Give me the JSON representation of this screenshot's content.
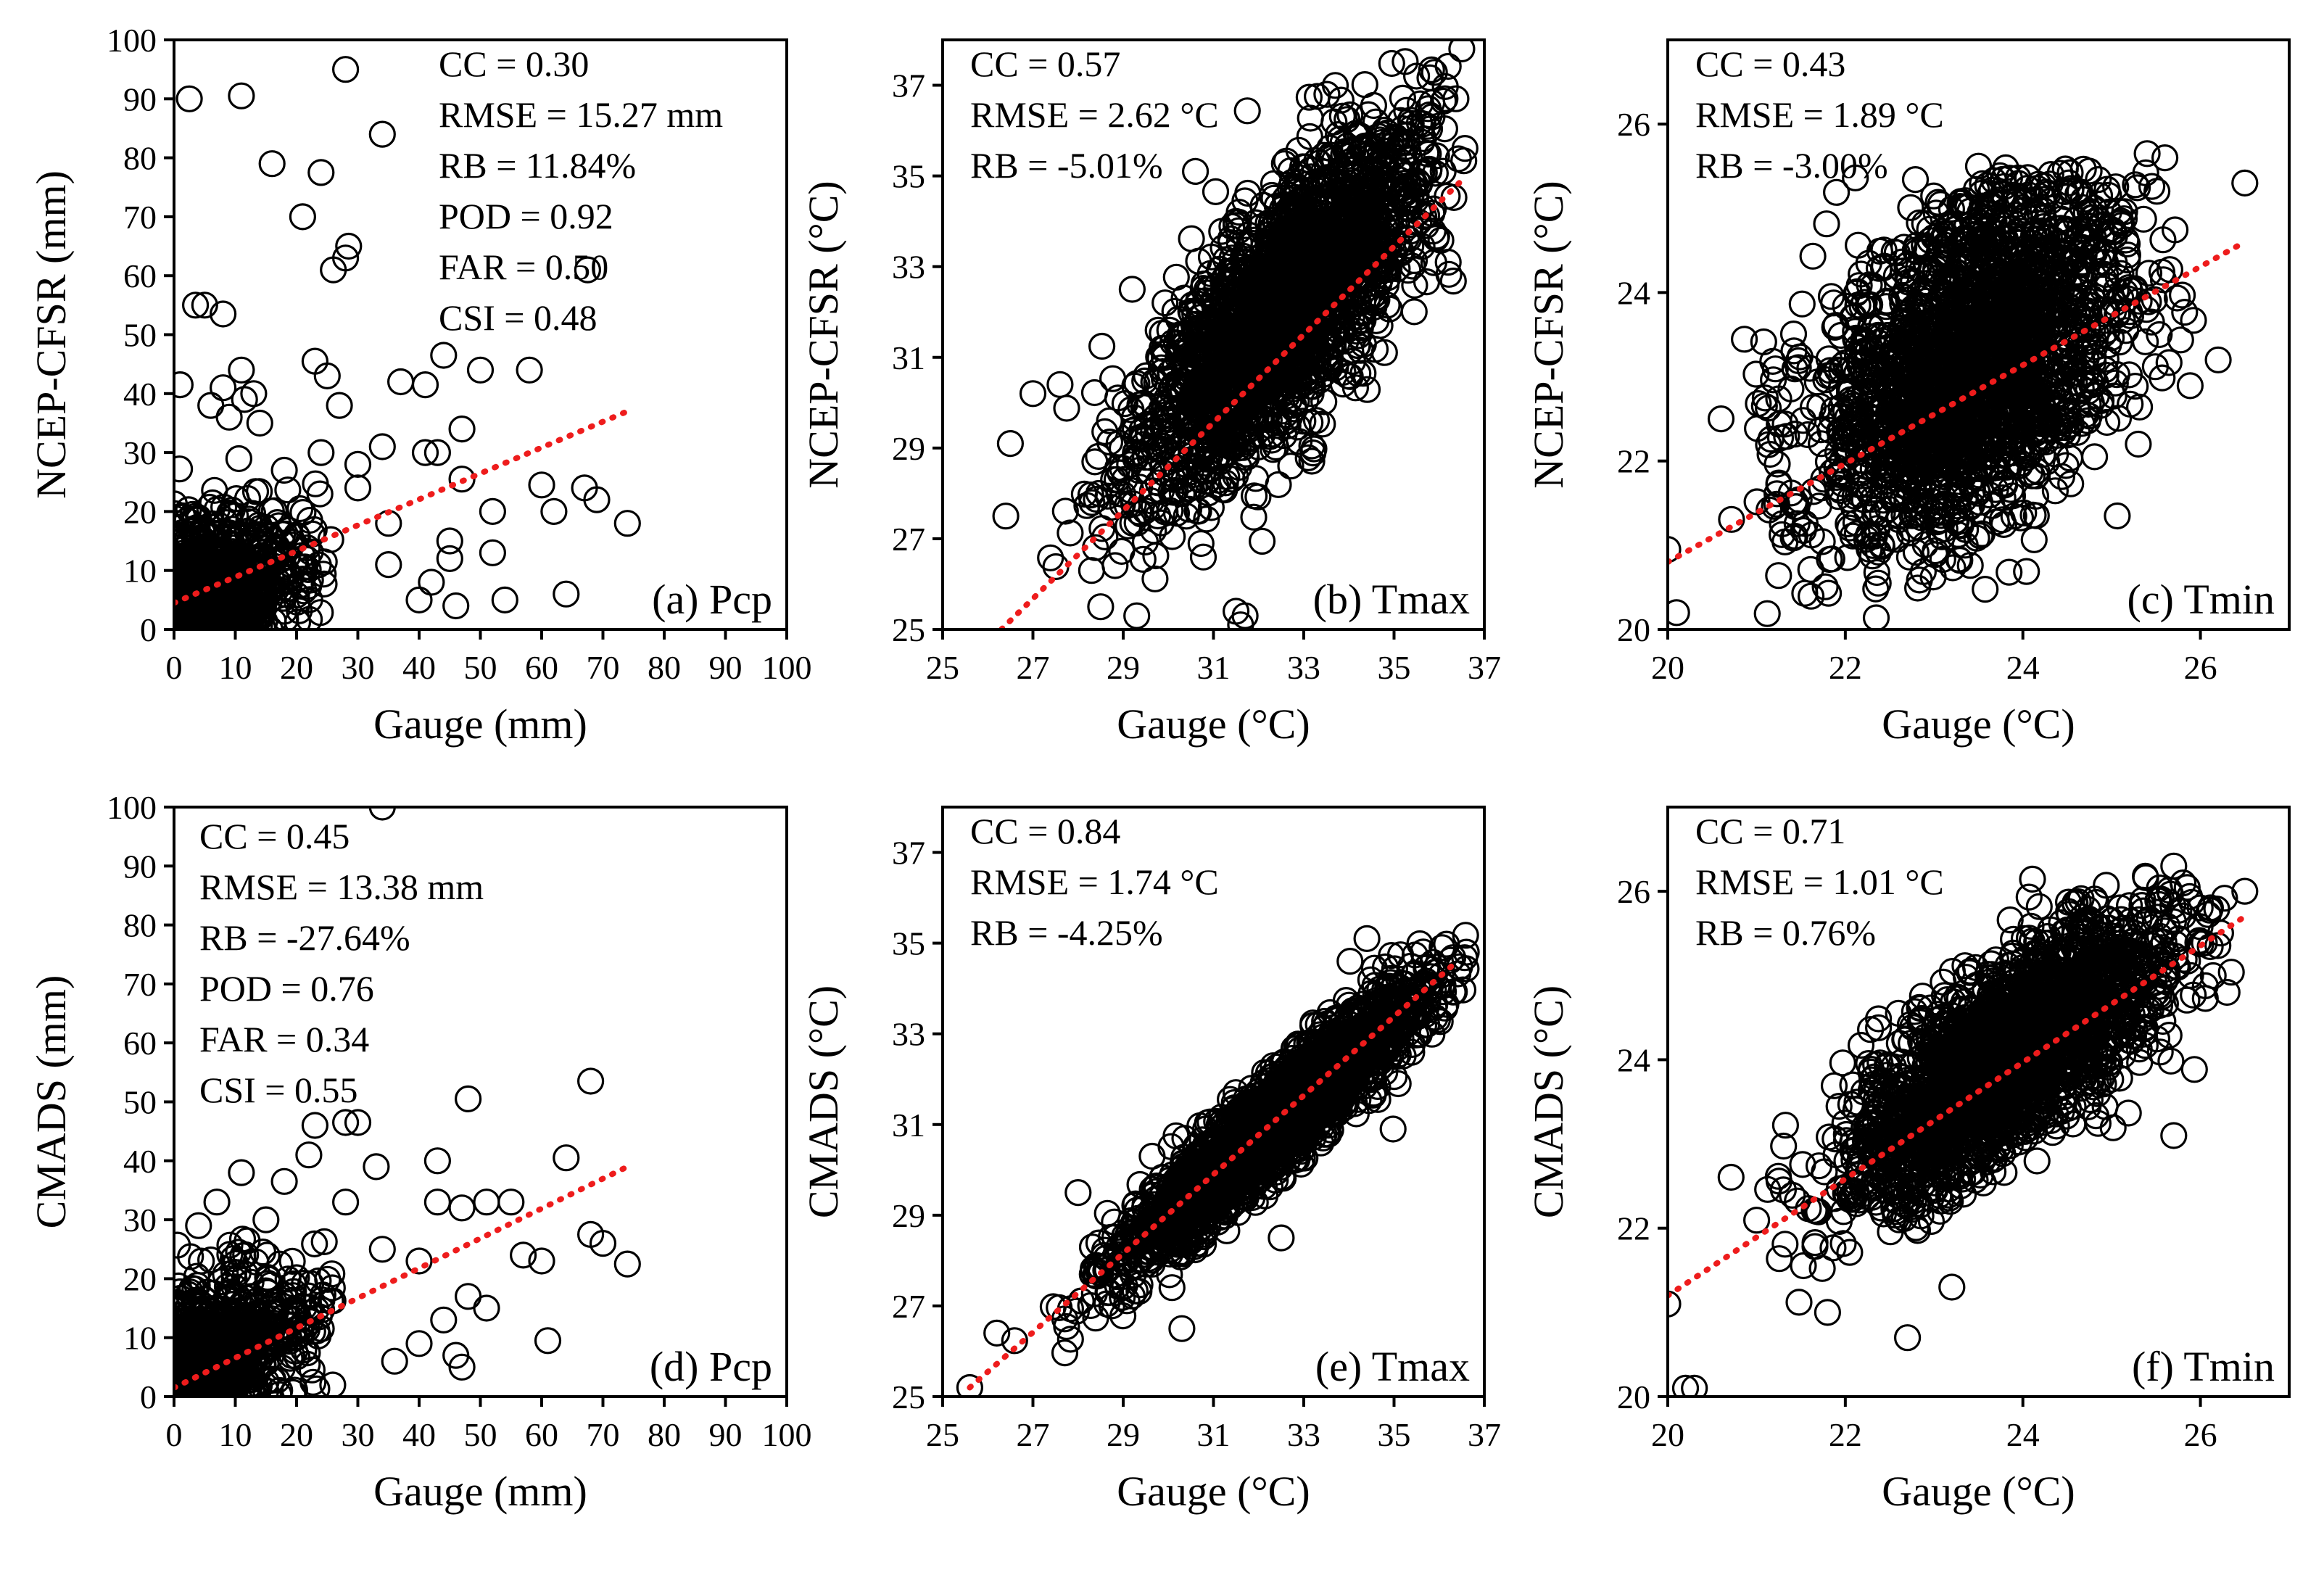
{
  "chart_data": [
    {
      "type": "scatter",
      "panel_label": "(a) Pcp",
      "xlabel": "Gauge (mm)",
      "ylabel": "NCEP-CFSR (mm)",
      "xlim": [
        0,
        100
      ],
      "ylim": [
        0,
        100
      ],
      "xticks": [
        "0",
        "10",
        "20",
        "30",
        "40",
        "50",
        "60",
        "70",
        "80",
        "90",
        "100"
      ],
      "yticks": [
        "0",
        "10",
        "20",
        "30",
        "40",
        "50",
        "60",
        "70",
        "80",
        "90",
        "100"
      ],
      "stats": [
        "CC = 0.30",
        "RMSE = 15.27 mm",
        "RB = 11.84%",
        "POD = 0.92",
        "FAR = 0.50",
        "CSI = 0.48"
      ],
      "trendline": {
        "x": [
          0,
          74
        ],
        "y": [
          4.5,
          37
        ]
      },
      "points": [
        [
          2.5,
          90
        ],
        [
          11,
          90.5
        ],
        [
          28,
          95
        ],
        [
          34,
          84
        ],
        [
          16,
          79
        ],
        [
          24,
          77.5
        ],
        [
          28.5,
          65
        ],
        [
          21,
          70
        ],
        [
          26,
          61
        ],
        [
          28,
          63
        ],
        [
          67.5,
          61
        ],
        [
          3.5,
          55
        ],
        [
          5,
          55
        ],
        [
          8,
          53.5
        ],
        [
          44,
          46.5
        ],
        [
          50,
          44
        ],
        [
          58,
          44
        ],
        [
          23,
          45.5
        ],
        [
          25,
          43
        ],
        [
          37,
          42
        ],
        [
          41,
          41.5
        ],
        [
          11,
          44
        ],
        [
          13,
          40
        ],
        [
          1,
          41.5
        ],
        [
          6,
          38
        ],
        [
          9,
          36
        ],
        [
          27,
          38
        ],
        [
          34,
          31
        ],
        [
          41,
          30
        ],
        [
          43,
          30
        ],
        [
          60,
          24.5
        ],
        [
          67,
          24
        ],
        [
          69,
          22
        ],
        [
          62,
          20
        ],
        [
          47,
          25.5
        ],
        [
          52,
          20
        ],
        [
          47,
          34
        ],
        [
          30,
          24
        ],
        [
          35,
          18
        ],
        [
          45,
          15
        ],
        [
          52,
          13
        ],
        [
          45,
          12
        ],
        [
          42,
          8
        ],
        [
          40,
          5
        ],
        [
          46,
          4
        ],
        [
          54,
          5
        ],
        [
          64,
          6
        ],
        [
          74,
          18
        ],
        [
          24,
          30
        ],
        [
          18,
          27
        ],
        [
          30,
          28
        ],
        [
          20,
          16
        ],
        [
          35,
          11
        ],
        [
          14,
          35
        ],
        [
          8,
          41
        ],
        [
          11.5,
          39
        ]
      ],
      "cloud": {
        "n": 1200,
        "x_range": [
          0,
          26
        ],
        "y_range": [
          0,
          30
        ],
        "corr": 0.35
      }
    },
    {
      "type": "scatter",
      "panel_label": "(b) Tmax",
      "xlabel": "Gauge (°C)",
      "ylabel": "NCEP-CFSR (°C)",
      "xlim": [
        25,
        37
      ],
      "ylim": [
        25,
        38
      ],
      "xticks": [
        "25",
        "27",
        "29",
        "31",
        "33",
        "35",
        "37"
      ],
      "yticks": [
        "25",
        "27",
        "29",
        "31",
        "33",
        "35",
        "37"
      ],
      "stats": [
        "CC = 0.57",
        "RMSE = 2.62 °C",
        "RB = -5.01%"
      ],
      "trendline": {
        "x": [
          26.3,
          36.5
        ],
        "y": [
          25,
          34.9
        ]
      },
      "points": [
        [
          26.4,
          27.5
        ],
        [
          26.5,
          29.1
        ],
        [
          27,
          30.2
        ],
        [
          27.6,
          30.4
        ],
        [
          28.3,
          26.3
        ],
        [
          28.5,
          25.5
        ],
        [
          29.3,
          25.3
        ],
        [
          29.2,
          32.5
        ],
        [
          31.5,
          25.4
        ],
        [
          31.7,
          25.3
        ],
        [
          31.6,
          25.1
        ],
        [
          30.6,
          35.1
        ],
        [
          35.5,
          37.2
        ],
        [
          36.5,
          37.8
        ]
      ],
      "cloud": {
        "n": 2200,
        "x_center": 32.6,
        "x_sd": 1.6,
        "slope": 0.97,
        "intercept": 0.5,
        "y_sd": 1.3,
        "x_min": 27.0,
        "x_max": 36.6,
        "y_min": 25.6,
        "y_max": 37.6
      }
    },
    {
      "type": "scatter",
      "panel_label": "(c) Tmin",
      "xlabel": "Gauge (°C)",
      "ylabel": "NCEP-CFSR (°C)",
      "xlim": [
        20,
        27
      ],
      "ylim": [
        20,
        27
      ],
      "xticks": [
        "20",
        "22",
        "24",
        "26"
      ],
      "yticks": [
        "20",
        "22",
        "24",
        "26"
      ],
      "stats": [
        "CC = 0.43",
        "RMSE = 1.89 °C",
        "RB = -3.00%"
      ],
      "trendline": {
        "x": [
          20,
          26.5
        ],
        "y": [
          20.8,
          24.6
        ]
      },
      "points": [
        [
          20.0,
          20.95
        ],
        [
          20.1,
          20.2
        ],
        [
          25.6,
          25.6
        ],
        [
          26.5,
          25.3
        ],
        [
          25.4,
          25.65
        ],
        [
          26.2,
          23.2
        ],
        [
          25.3,
          22.2
        ],
        [
          21.6,
          23.1
        ],
        [
          20.6,
          22.5
        ],
        [
          23.5,
          25.5
        ]
      ],
      "cloud": {
        "n": 2200,
        "x_center": 23.4,
        "x_sd": 0.9,
        "slope": 0.55,
        "intercept": 10.3,
        "y_sd": 0.95,
        "x_min": 20.3,
        "x_max": 26.0,
        "y_min": 20.1,
        "y_max": 25.5
      }
    },
    {
      "type": "scatter",
      "panel_label": "(d) Pcp",
      "xlabel": "Gauge (mm)",
      "ylabel": "CMADS (mm)",
      "xlim": [
        0,
        100
      ],
      "ylim": [
        0,
        100
      ],
      "xticks": [
        "0",
        "10",
        "20",
        "30",
        "40",
        "50",
        "60",
        "70",
        "80",
        "90",
        "100"
      ],
      "yticks": [
        "0",
        "10",
        "20",
        "30",
        "40",
        "50",
        "60",
        "70",
        "80",
        "90",
        "100"
      ],
      "stats": [
        "CC = 0.45",
        "RMSE = 13.38 mm",
        "RB = -27.64%",
        "POD = 0.76",
        "FAR = 0.34",
        "CSI = 0.55"
      ],
      "trendline": {
        "x": [
          0,
          74
        ],
        "y": [
          1.5,
          39
        ]
      },
      "points": [
        [
          34,
          100
        ],
        [
          68,
          53.5
        ],
        [
          48,
          50.5
        ],
        [
          23,
          46
        ],
        [
          28,
          46.5
        ],
        [
          30,
          46.5
        ],
        [
          22,
          41
        ],
        [
          33,
          39
        ],
        [
          43,
          40
        ],
        [
          64,
          40.5
        ],
        [
          51,
          33
        ],
        [
          47,
          32
        ],
        [
          43,
          33
        ],
        [
          55,
          33
        ],
        [
          28,
          33
        ],
        [
          18,
          36.5
        ],
        [
          34,
          25
        ],
        [
          40,
          23
        ],
        [
          57,
          24
        ],
        [
          60,
          23
        ],
        [
          68,
          27.5
        ],
        [
          70,
          26
        ],
        [
          74,
          22.5
        ],
        [
          48,
          17
        ],
        [
          51,
          15
        ],
        [
          44,
          13
        ],
        [
          40,
          9
        ],
        [
          46,
          7
        ],
        [
          47,
          5
        ],
        [
          61,
          9.5
        ],
        [
          36,
          6
        ],
        [
          4,
          29
        ],
        [
          7,
          33
        ],
        [
          11,
          38
        ],
        [
          15,
          30
        ]
      ],
      "cloud": {
        "n": 1200,
        "x_range": [
          0,
          26
        ],
        "y_range": [
          0,
          26
        ],
        "corr": 0.45
      }
    },
    {
      "type": "scatter",
      "panel_label": "(e) Tmax",
      "xlabel": "Gauge (°C)",
      "ylabel": "CMADS (°C)",
      "xlim": [
        25,
        37
      ],
      "ylim": [
        25,
        38
      ],
      "xticks": [
        "25",
        "27",
        "29",
        "31",
        "33",
        "35",
        "37"
      ],
      "yticks": [
        "25",
        "27",
        "29",
        "31",
        "33",
        "35",
        "37"
      ],
      "stats": [
        "CC = 0.84",
        "RMSE = 1.74 °C",
        "RB = -4.25%"
      ],
      "trendline": {
        "x": [
          25.6,
          36.4
        ],
        "y": [
          25.2,
          34.6
        ]
      },
      "points": [
        [
          25.6,
          25.2
        ],
        [
          26.2,
          26.4
        ],
        [
          28.0,
          29.5
        ],
        [
          30.3,
          26.5
        ],
        [
          32.5,
          28.5
        ],
        [
          34.4,
          35.1
        ],
        [
          36.6,
          34.8
        ]
      ],
      "cloud": {
        "n": 2200,
        "x_center": 32.4,
        "x_sd": 1.7,
        "slope": 0.87,
        "intercept": 2.9,
        "y_sd": 0.55,
        "x_min": 26.0,
        "x_max": 36.6,
        "y_min": 25.8,
        "y_max": 35.3
      }
    },
    {
      "type": "scatter",
      "panel_label": "(f) Tmin",
      "xlabel": "Gauge (°C)",
      "ylabel": "CMADS (°C)",
      "xlim": [
        20,
        27
      ],
      "ylim": [
        20,
        27
      ],
      "xticks": [
        "20",
        "22",
        "24",
        "26"
      ],
      "yticks": [
        "20",
        "22",
        "24",
        "26"
      ],
      "stats": [
        "CC = 0.71",
        "RMSE = 1.01 °C",
        "RB = 0.76%"
      ],
      "trendline": {
        "x": [
          20,
          26.5
        ],
        "y": [
          21.2,
          25.7
        ]
      },
      "points": [
        [
          20.3,
          20.1
        ],
        [
          20.2,
          20.1
        ],
        [
          20.0,
          21.1
        ],
        [
          26.5,
          26.0
        ],
        [
          25.7,
          26.3
        ],
        [
          26.3,
          24.8
        ],
        [
          22.7,
          20.7
        ],
        [
          21.8,
          21.0
        ],
        [
          25.7,
          23.1
        ],
        [
          23.2,
          21.3
        ]
      ],
      "cloud": {
        "n": 2200,
        "x_center": 23.8,
        "x_sd": 0.9,
        "slope": 0.7,
        "intercept": 7.35,
        "y_sd": 0.55,
        "x_min": 20.2,
        "x_max": 26.4,
        "y_min": 20.5,
        "y_max": 26.2
      }
    }
  ]
}
